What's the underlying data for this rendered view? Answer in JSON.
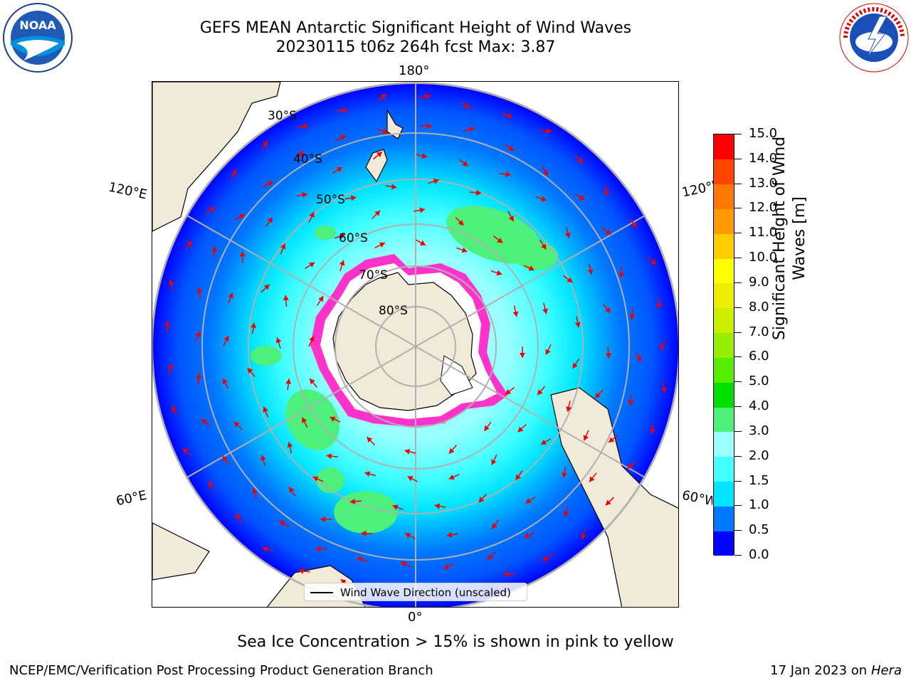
{
  "header": {
    "title_line1": "GEFS MEAN Antarctic Significant Height of Wind Waves",
    "title_line2": "20230115 t06z 264h fcst   Max: 3.87"
  },
  "logos": {
    "left": {
      "icon": "noaa-logo-icon",
      "text": "NOAA"
    },
    "right": {
      "icon": "national-weather-service-logo-icon",
      "text": "NATIONAL WEATHER SERVICE"
    }
  },
  "map": {
    "projection": "south-polar-stereographic",
    "longitude_labels": {
      "top": "180°",
      "bottom": "0°",
      "left_upper": "120°E",
      "left_lower": "60°E",
      "right_upper": "120°W",
      "right_lower": "60°W"
    },
    "latitude_labels": [
      "30°S",
      "40°S",
      "50°S",
      "60°S",
      "70°S",
      "80°S"
    ],
    "colors": {
      "land": "#efebd8",
      "ice_white": "#ffffff",
      "ice_pink": "#ff33cc",
      "arrow": "#ee0000",
      "grid": "#b0b0b0"
    }
  },
  "colorbar": {
    "title": "Significant Height of Wind Waves [m]",
    "ticks": [
      "0.0",
      "0.5",
      "1.0",
      "1.5",
      "2.0",
      "3.0",
      "4.0",
      "5.0",
      "6.0",
      "7.0",
      "8.0",
      "9.0",
      "10.0",
      "11.0",
      "12.0",
      "13.0",
      "14.0",
      "15.0"
    ],
    "colors": [
      "#0000ff",
      "#0077ff",
      "#00e5ff",
      "#44ffff",
      "#99ffff",
      "#4cf07a",
      "#00dd00",
      "#55ee00",
      "#99ee00",
      "#ccee00",
      "#eeee00",
      "#ffff00",
      "#ffcc00",
      "#ff9900",
      "#ff7700",
      "#ff4400",
      "#ff0000"
    ]
  },
  "legend": {
    "label": "Wind Wave Direction (unscaled)"
  },
  "subtitle": "Sea Ice Concentration > 15% is shown in pink to yellow",
  "footer": {
    "left": "NCEP/EMC/Verification Post Processing Product Generation Branch",
    "right_prefix": "17 Jan 2023 on ",
    "right_machine": "Hera"
  }
}
